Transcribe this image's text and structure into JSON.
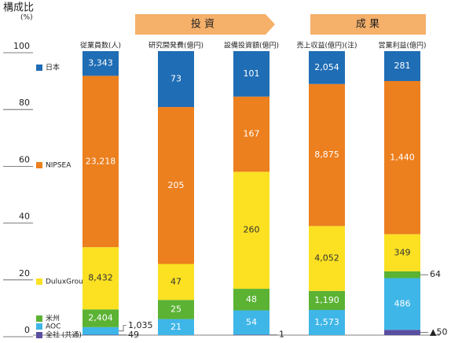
{
  "chart_data": {
    "type": "bar",
    "stacked": "percent",
    "y_title": "構成比",
    "y_unit": "(%)",
    "groups": [
      "投 資",
      "成 果"
    ],
    "categories": [
      "従業員数(人)",
      "研究開発費(億円)",
      "設備投資額(億円)",
      "売上収益(億円)(注)",
      "営業利益(億円)"
    ],
    "series": [
      {
        "name": "日本",
        "color": "#1f6db5",
        "values": [
          3343,
          73,
          101,
          2054,
          281
        ],
        "value_labels": [
          "3,343",
          "73",
          "101",
          "2,054",
          "281"
        ]
      },
      {
        "name": "NIPSEA",
        "color": "#ec7f1e",
        "values": [
          23218,
          205,
          167,
          8875,
          1440
        ],
        "value_labels": [
          "23,218",
          "205",
          "167",
          "8,875",
          "1,440"
        ]
      },
      {
        "name": "DuluxGroup",
        "color": "#fbe122",
        "values": [
          8432,
          47,
          260,
          4052,
          349
        ],
        "value_labels": [
          "8,432",
          "47",
          "260",
          "4,052",
          "349"
        ]
      },
      {
        "name": "米州",
        "color": "#5bb233",
        "values": [
          2404,
          25,
          48,
          1190,
          64
        ],
        "value_labels": [
          "2,404",
          "25",
          "48",
          "1,190",
          "64"
        ]
      },
      {
        "name": "AOC",
        "color": "#3fb6e8",
        "values": [
          1035,
          21,
          54,
          1573,
          486
        ],
        "value_labels": [
          "1,035",
          "21",
          "54",
          "1,573",
          "486"
        ]
      },
      {
        "name": "全社 (共通)",
        "color": "#5a4ea0",
        "values": [
          49,
          null,
          1,
          null,
          -50
        ],
        "value_labels": [
          "49",
          null,
          "1",
          null,
          "▲50"
        ]
      }
    ],
    "ylim": [
      0,
      100
    ],
    "yticks": [
      0,
      20,
      40,
      60,
      80,
      100
    ]
  }
}
